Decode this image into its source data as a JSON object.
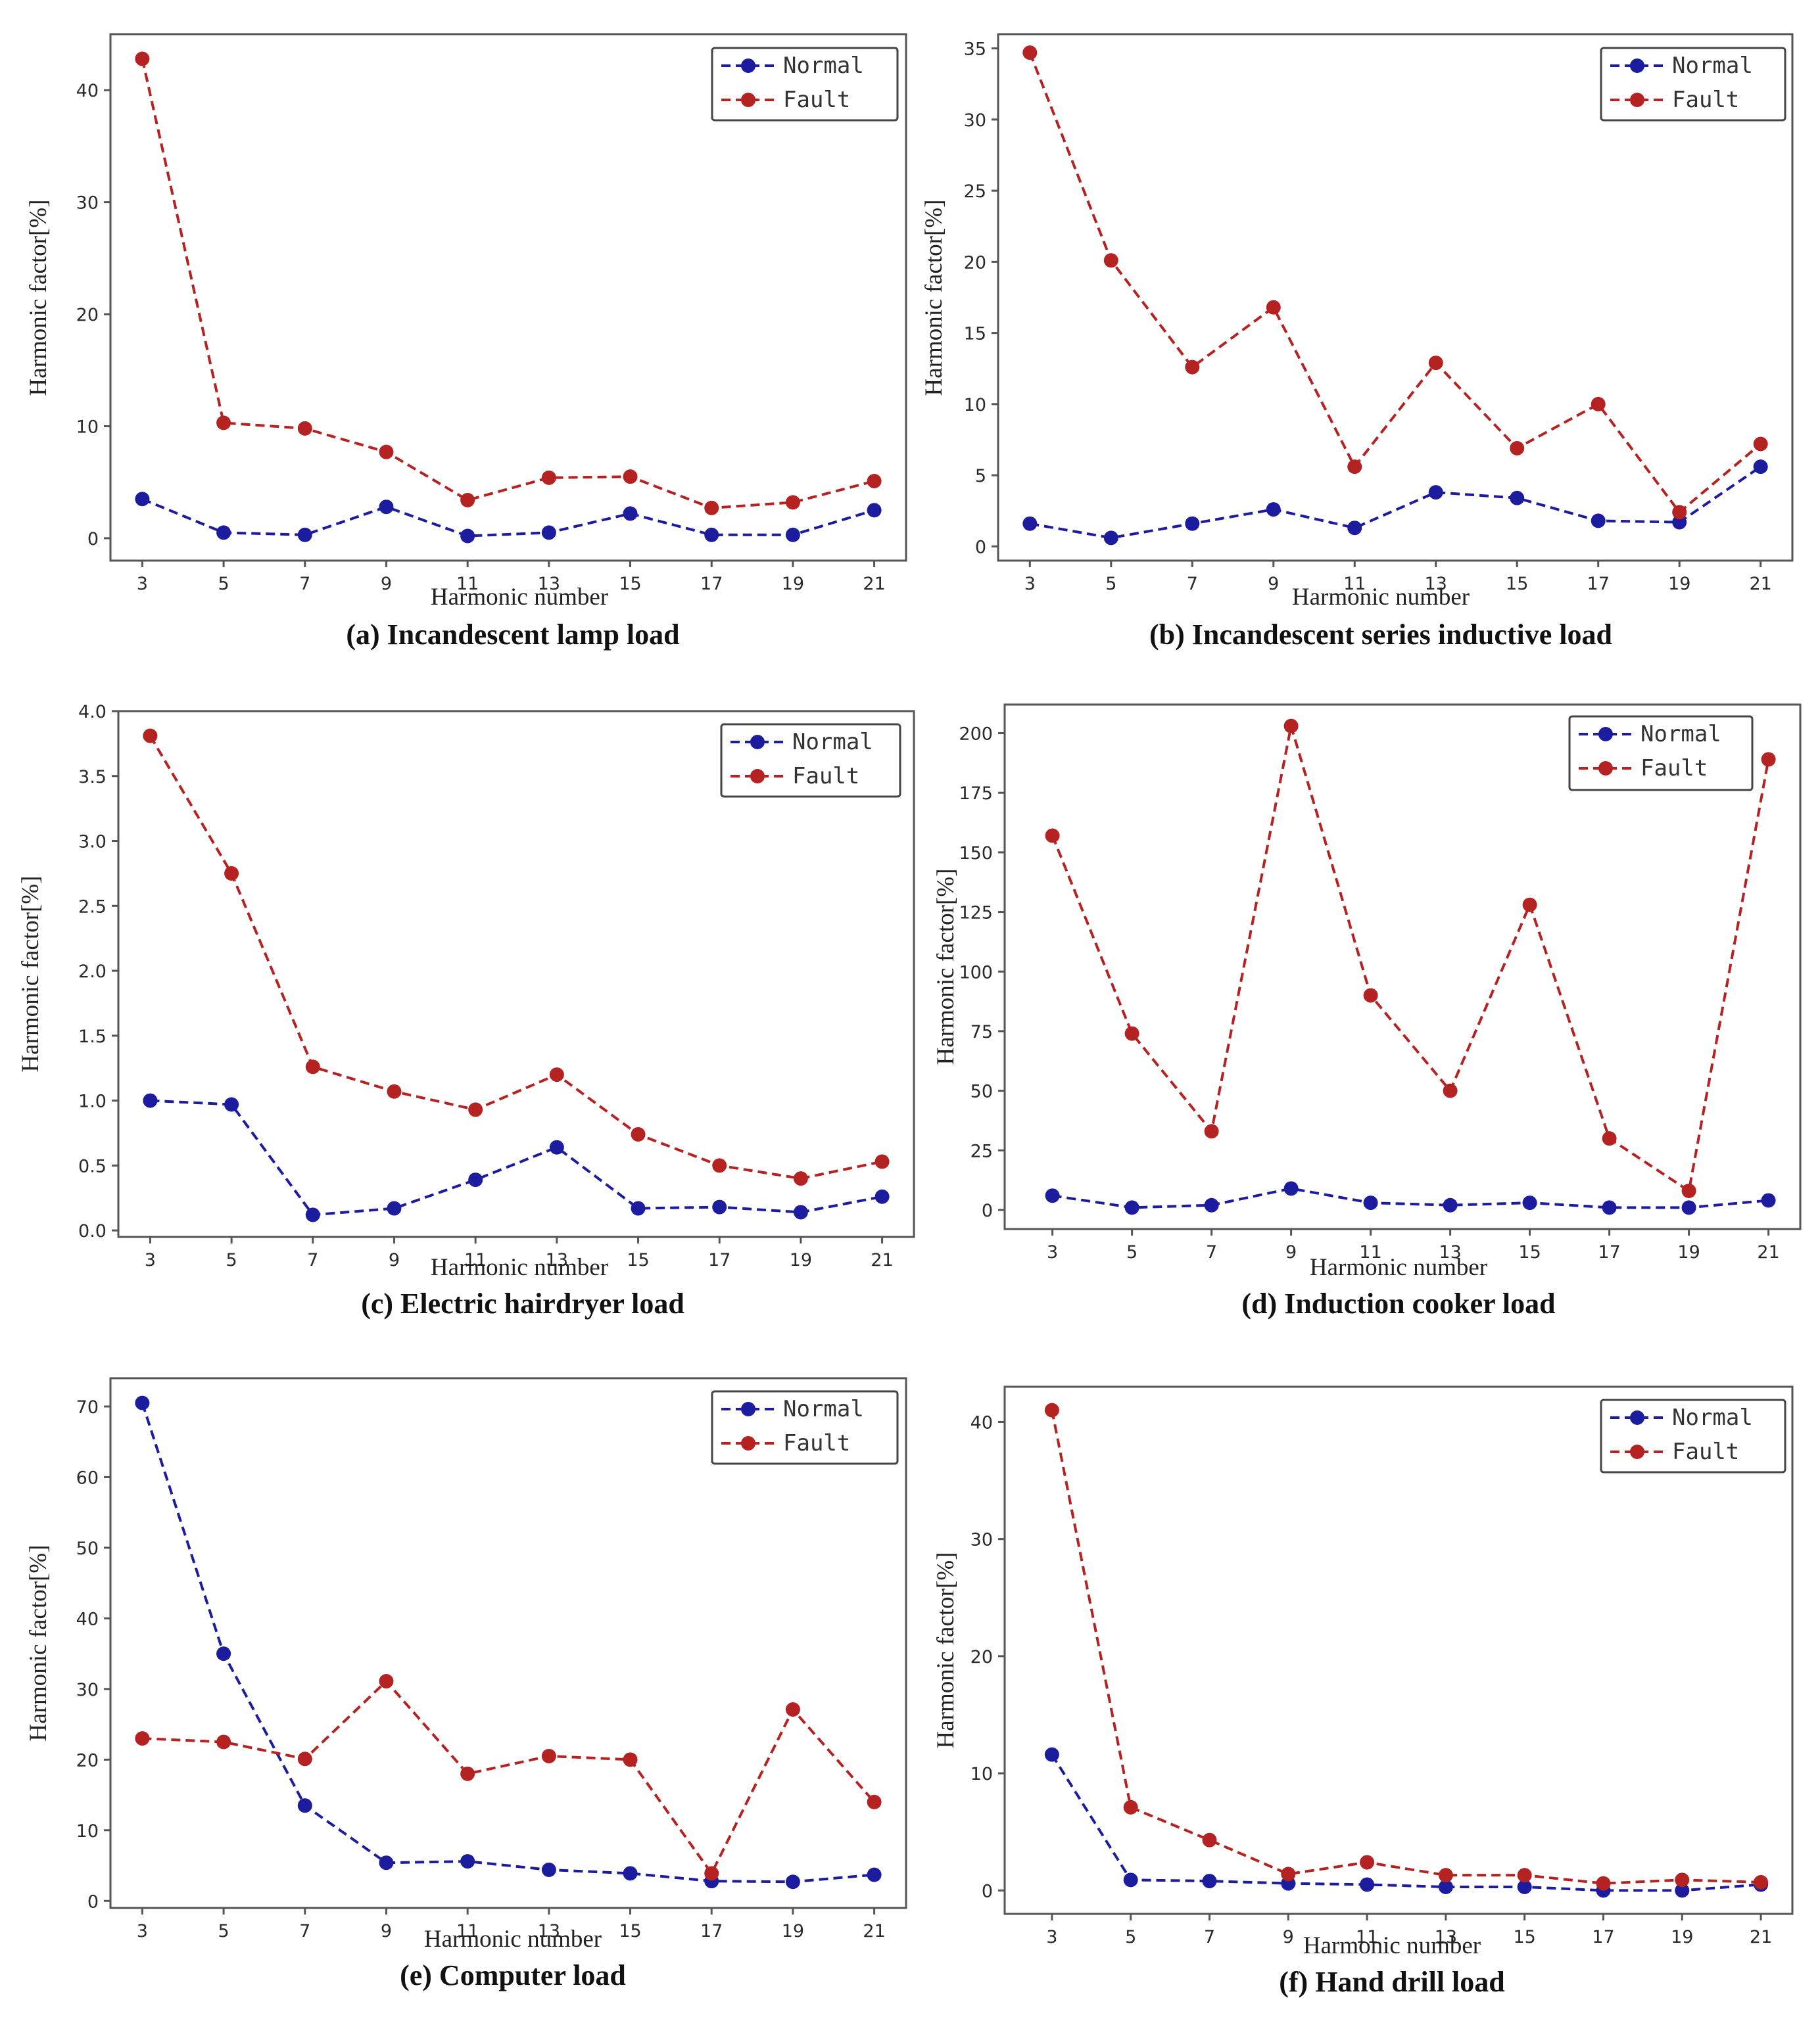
{
  "chart_data": [
    {
      "id": "a",
      "type": "line",
      "caption": "(a) Incandescent lamp load",
      "xlabel": "Harmonic number",
      "ylabel": "Harmonic factor[%]",
      "categories": [
        "3",
        "5",
        "7",
        "9",
        "11",
        "13",
        "15",
        "17",
        "19",
        "21"
      ],
      "ylim": [
        -2,
        45
      ],
      "yticks": [
        "0",
        "10",
        "20",
        "30",
        "40"
      ],
      "legend_position": "top-right",
      "series": [
        {
          "name": "Normal",
          "color": "#1c1c9e",
          "values": [
            3.5,
            0.5,
            0.3,
            2.8,
            0.2,
            0.5,
            2.2,
            0.3,
            0.3,
            2.5
          ]
        },
        {
          "name": "Fault",
          "color": "#b52222",
          "values": [
            42.8,
            10.3,
            9.8,
            7.7,
            3.4,
            5.4,
            5.5,
            2.7,
            3.2,
            5.1
          ]
        }
      ]
    },
    {
      "id": "b",
      "type": "line",
      "caption": "(b) Incandescent series inductive load",
      "xlabel": "Harmonic number",
      "ylabel": "Harmonic factor[%]",
      "categories": [
        "3",
        "5",
        "7",
        "9",
        "11",
        "13",
        "15",
        "17",
        "19",
        "21"
      ],
      "ylim": [
        -1,
        36
      ],
      "yticks": [
        "0",
        "5",
        "10",
        "15",
        "20",
        "25",
        "30",
        "35"
      ],
      "legend_position": "top-right",
      "series": [
        {
          "name": "Normal",
          "color": "#1c1c9e",
          "values": [
            1.6,
            0.6,
            1.6,
            2.6,
            1.3,
            3.8,
            3.4,
            1.8,
            1.7,
            5.6
          ]
        },
        {
          "name": "Fault",
          "color": "#b52222",
          "values": [
            34.7,
            20.1,
            12.6,
            16.8,
            5.6,
            12.9,
            6.9,
            10.0,
            2.4,
            7.2
          ]
        }
      ]
    },
    {
      "id": "c",
      "type": "line",
      "caption": "(c)  Electric hairdryer load",
      "xlabel": "Harmonic number",
      "ylabel": "Harmonic factor[%]",
      "categories": [
        "3",
        "5",
        "7",
        "9",
        "11",
        "13",
        "15",
        "17",
        "19",
        "21"
      ],
      "ylim": [
        -0.05,
        4.0
      ],
      "yticks": [
        "0.0",
        "0.5",
        "1.0",
        "1.5",
        "2.0",
        "2.5",
        "3.0",
        "3.5",
        "4.0"
      ],
      "legend_position": "top-right",
      "series": [
        {
          "name": "Normal",
          "color": "#1c1c9e",
          "values": [
            1.0,
            0.97,
            0.12,
            0.17,
            0.39,
            0.64,
            0.17,
            0.18,
            0.14,
            0.26
          ]
        },
        {
          "name": "Fault",
          "color": "#b52222",
          "values": [
            3.81,
            2.75,
            1.26,
            1.07,
            0.93,
            1.2,
            0.74,
            0.5,
            0.4,
            0.53
          ]
        }
      ]
    },
    {
      "id": "d",
      "type": "line",
      "caption": "(d) Induction cooker load",
      "xlabel": "Harmonic number",
      "ylabel": "Harmonic factor[%]",
      "categories": [
        "3",
        "5",
        "7",
        "9",
        "11",
        "13",
        "15",
        "17",
        "19",
        "21"
      ],
      "ylim": [
        -8,
        212
      ],
      "yticks": [
        "0",
        "25",
        "50",
        "75",
        "100",
        "125",
        "150",
        "175",
        "200"
      ],
      "legend_position": "top-right",
      "series": [
        {
          "name": "Normal",
          "color": "#1c1c9e",
          "values": [
            6,
            1,
            2,
            9,
            3,
            2,
            3,
            1,
            1,
            4
          ]
        },
        {
          "name": "Fault",
          "color": "#b52222",
          "values": [
            157,
            74,
            33,
            203,
            90,
            50,
            128,
            30,
            8,
            189
          ]
        }
      ]
    },
    {
      "id": "e",
      "type": "line",
      "caption": "(e) Computer load",
      "xlabel": "Harmonic number",
      "ylabel": "Harmonic factor[%]",
      "categories": [
        "3",
        "5",
        "7",
        "9",
        "11",
        "13",
        "15",
        "17",
        "19",
        "21"
      ],
      "ylim": [
        -1,
        74
      ],
      "yticks": [
        "0",
        "10",
        "20",
        "30",
        "40",
        "50",
        "60",
        "70"
      ],
      "legend_position": "top-right",
      "series": [
        {
          "name": "Normal",
          "color": "#1c1c9e",
          "values": [
            70.5,
            35.0,
            13.5,
            5.4,
            5.6,
            4.4,
            3.9,
            2.8,
            2.7,
            3.7
          ]
        },
        {
          "name": "Fault",
          "color": "#b52222",
          "values": [
            23.0,
            22.5,
            20.1,
            31.1,
            18.0,
            20.5,
            20.0,
            3.9,
            27.1,
            14.0
          ]
        }
      ]
    },
    {
      "id": "f",
      "type": "line",
      "caption": "(f) Hand drill load",
      "xlabel": "Harmonic number",
      "ylabel": "Harmonic factor[%]",
      "categories": [
        "3",
        "5",
        "7",
        "9",
        "11",
        "13",
        "15",
        "17",
        "19",
        "21"
      ],
      "ylim": [
        -2,
        43
      ],
      "yticks": [
        "0",
        "10",
        "20",
        "30",
        "40"
      ],
      "legend_position": "top-right",
      "series": [
        {
          "name": "Normal",
          "color": "#1c1c9e",
          "values": [
            11.6,
            0.9,
            0.8,
            0.6,
            0.5,
            0.3,
            0.3,
            0.0,
            0.0,
            0.5
          ]
        },
        {
          "name": "Fault",
          "color": "#b52222",
          "values": [
            41.0,
            7.1,
            4.3,
            1.4,
            2.4,
            1.3,
            1.3,
            0.6,
            0.9,
            0.7
          ]
        }
      ]
    }
  ]
}
